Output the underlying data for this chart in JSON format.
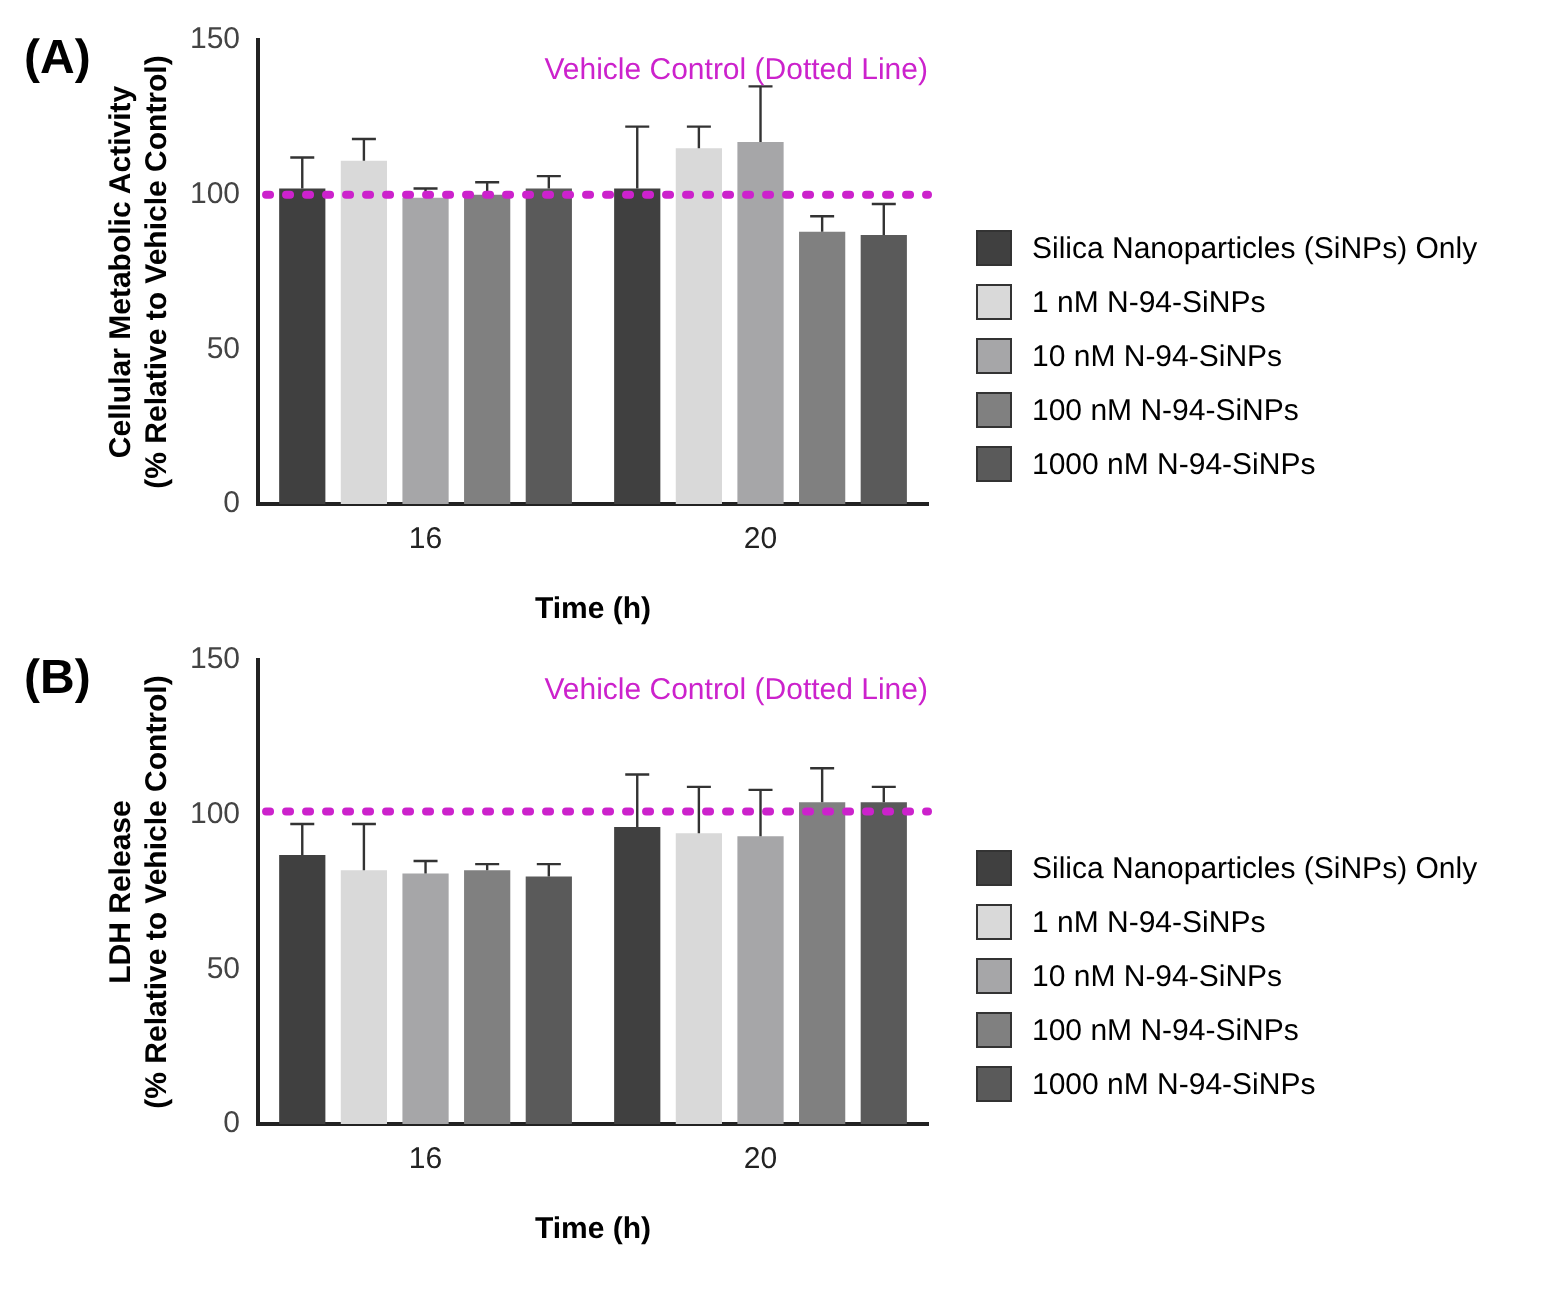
{
  "chart_data": [
    {
      "type": "bar",
      "annotations": [
        "(A)"
      ],
      "xlabel": "Time (h)",
      "ylabel": "Cellular Metabolic Activity\n(% Relative to Vehicle Control)",
      "categories": [
        "16",
        "20"
      ],
      "ylim": [
        0,
        150
      ],
      "yticks": [
        0,
        50,
        100,
        150
      ],
      "grid": false,
      "legend": "right",
      "ref_lines": [
        {
          "axis": "y",
          "value": 100,
          "label": "Vehicle Control (Dotted Line)",
          "color": "#cc22cc",
          "line_style": "dotted"
        }
      ],
      "series": [
        {
          "name": "Silica Nanoparticles (SiNPs) Only",
          "color": "#404040",
          "values": [
            102,
            102
          ],
          "errors": [
            [
              102,
              112
            ],
            [
              102,
              122
            ]
          ]
        },
        {
          "name": "1 nM N-94-SiNPs",
          "color": "#d9d9d9",
          "values": [
            111,
            115
          ],
          "errors": [
            [
              111,
              118
            ],
            [
              115,
              122
            ]
          ]
        },
        {
          "name": "10 nM N-94-SiNPs",
          "color": "#a6a6a8",
          "values": [
            99,
            117
          ],
          "errors": [
            [
              99,
              102
            ],
            [
              117,
              135
            ]
          ]
        },
        {
          "name": "100 nM N-94-SiNPs",
          "color": "#808080",
          "values": [
            100,
            88
          ],
          "errors": [
            [
              100,
              104
            ],
            [
              88,
              93
            ]
          ]
        },
        {
          "name": "1000 nM N-94-SiNPs",
          "color": "#5a5a5a",
          "values": [
            102,
            87
          ],
          "errors": [
            [
              102,
              106
            ],
            [
              87,
              97
            ]
          ]
        }
      ]
    },
    {
      "type": "bar",
      "annotations": [
        "(B)"
      ],
      "xlabel": "Time (h)",
      "ylabel": "LDH Release\n(% Relative to Vehicle Control)",
      "categories": [
        "16",
        "20"
      ],
      "ylim": [
        0,
        150
      ],
      "yticks": [
        0,
        50,
        100,
        150
      ],
      "grid": false,
      "legend": "right",
      "ref_lines": [
        {
          "axis": "y",
          "value": 101,
          "label": "Vehicle Control (Dotted Line)",
          "color": "#cc22cc",
          "line_style": "dotted"
        }
      ],
      "series": [
        {
          "name": "Silica Nanoparticles (SiNPs) Only",
          "color": "#404040",
          "values": [
            87,
            96
          ],
          "errors": [
            [
              87,
              97
            ],
            [
              96,
              113
            ]
          ]
        },
        {
          "name": "1 nM N-94-SiNPs",
          "color": "#d9d9d9",
          "values": [
            82,
            94
          ],
          "errors": [
            [
              82,
              97
            ],
            [
              94,
              109
            ]
          ]
        },
        {
          "name": "10 nM N-94-SiNPs",
          "color": "#a6a6a8",
          "values": [
            81,
            93
          ],
          "errors": [
            [
              81,
              85
            ],
            [
              93,
              108
            ]
          ]
        },
        {
          "name": "100 nM N-94-SiNPs",
          "color": "#808080",
          "values": [
            82,
            104
          ],
          "errors": [
            [
              82,
              84
            ],
            [
              104,
              115
            ]
          ]
        },
        {
          "name": "1000 nM N-94-SiNPs",
          "color": "#5a5a5a",
          "values": [
            80,
            104
          ],
          "errors": [
            [
              80,
              84
            ],
            [
              104,
              109
            ]
          ]
        }
      ]
    }
  ]
}
